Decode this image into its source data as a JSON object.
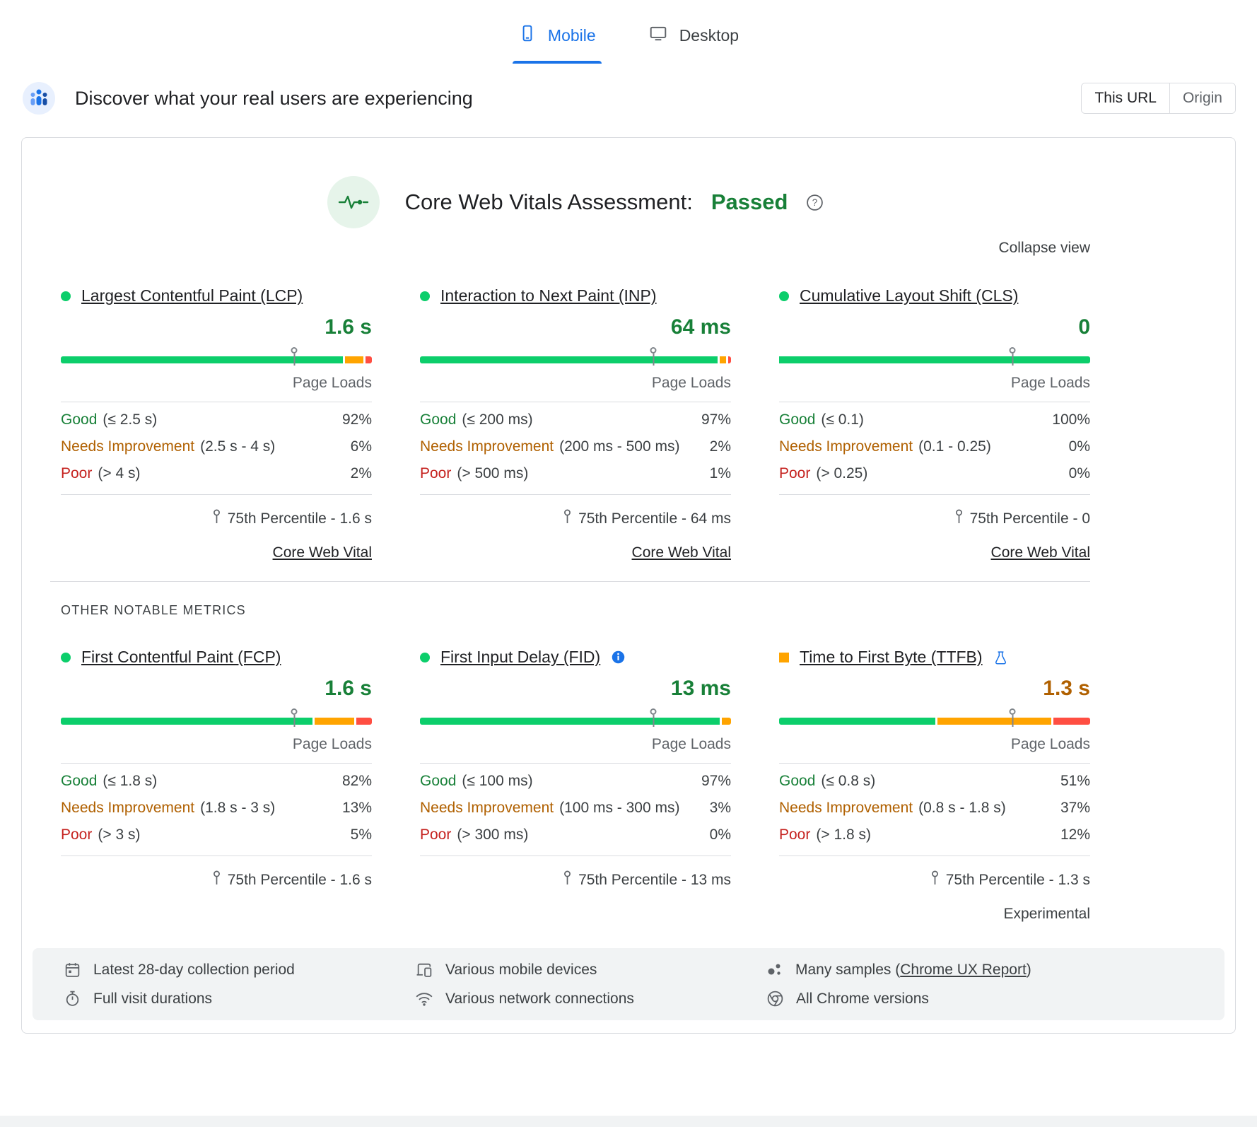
{
  "tabs": {
    "mobile": "Mobile",
    "desktop": "Desktop"
  },
  "header": {
    "title": "Discover what your real users are experiencing",
    "this_url": "This URL",
    "origin": "Origin"
  },
  "assessment": {
    "label": "Core Web Vitals Assessment:",
    "result": "Passed"
  },
  "collapse_view": "Collapse view",
  "section_title": "OTHER NOTABLE METRICS",
  "labels": {
    "page_loads": "Page Loads",
    "core_web_vital": "Core Web Vital",
    "experimental": "Experimental"
  },
  "core_metrics": [
    {
      "name": "Largest Contentful Paint (LCP)",
      "value": "1.6 s",
      "indicator": "green-circle",
      "value_color": "green",
      "distribution": [
        92,
        6,
        2
      ],
      "marker_pct": 75,
      "rows": [
        {
          "label": "Good",
          "range": "(≤ 2.5 s)",
          "pct": "92%"
        },
        {
          "label": "Needs Improvement",
          "range": "(2.5 s - 4 s)",
          "pct": "6%"
        },
        {
          "label": "Poor",
          "range": "(> 4 s)",
          "pct": "2%"
        }
      ],
      "percentile": "75th Percentile - 1.6 s",
      "core_web_vital_link": true,
      "experimental_note": false,
      "badges": []
    },
    {
      "name": "Interaction to Next Paint (INP)",
      "value": "64 ms",
      "indicator": "green-circle",
      "value_color": "green",
      "distribution": [
        97,
        2,
        1
      ],
      "marker_pct": 75,
      "rows": [
        {
          "label": "Good",
          "range": "(≤ 200 ms)",
          "pct": "97%"
        },
        {
          "label": "Needs Improvement",
          "range": "(200 ms - 500 ms)",
          "pct": "2%"
        },
        {
          "label": "Poor",
          "range": "(> 500 ms)",
          "pct": "1%"
        }
      ],
      "percentile": "75th Percentile - 64 ms",
      "core_web_vital_link": true,
      "experimental_note": false,
      "badges": []
    },
    {
      "name": "Cumulative Layout Shift (CLS)",
      "value": "0",
      "indicator": "green-circle",
      "value_color": "green",
      "distribution": [
        100,
        0,
        0
      ],
      "marker_pct": 75,
      "rows": [
        {
          "label": "Good",
          "range": "(≤ 0.1)",
          "pct": "100%"
        },
        {
          "label": "Needs Improvement",
          "range": "(0.1 - 0.25)",
          "pct": "0%"
        },
        {
          "label": "Poor",
          "range": "(> 0.25)",
          "pct": "0%"
        }
      ],
      "percentile": "75th Percentile - 0",
      "core_web_vital_link": true,
      "experimental_note": false,
      "badges": []
    }
  ],
  "other_metrics": [
    {
      "name": "First Contentful Paint (FCP)",
      "value": "1.6 s",
      "indicator": "green-circle",
      "value_color": "green",
      "distribution": [
        82,
        13,
        5
      ],
      "marker_pct": 75,
      "rows": [
        {
          "label": "Good",
          "range": "(≤ 1.8 s)",
          "pct": "82%"
        },
        {
          "label": "Needs Improvement",
          "range": "(1.8 s - 3 s)",
          "pct": "13%"
        },
        {
          "label": "Poor",
          "range": "(> 3 s)",
          "pct": "5%"
        }
      ],
      "percentile": "75th Percentile - 1.6 s",
      "core_web_vital_link": false,
      "experimental_note": false,
      "badges": []
    },
    {
      "name": "First Input Delay (FID)",
      "value": "13 ms",
      "indicator": "green-circle",
      "value_color": "green",
      "distribution": [
        97,
        3,
        0
      ],
      "marker_pct": 75,
      "rows": [
        {
          "label": "Good",
          "range": "(≤ 100 ms)",
          "pct": "97%"
        },
        {
          "label": "Needs Improvement",
          "range": "(100 ms - 300 ms)",
          "pct": "3%"
        },
        {
          "label": "Poor",
          "range": "(> 300 ms)",
          "pct": "0%"
        }
      ],
      "percentile": "75th Percentile - 13 ms",
      "core_web_vital_link": false,
      "experimental_note": false,
      "badges": [
        "info"
      ]
    },
    {
      "name": "Time to First Byte (TTFB)",
      "value": "1.3 s",
      "indicator": "orange-square",
      "value_color": "orange",
      "distribution": [
        51,
        37,
        12
      ],
      "marker_pct": 75,
      "rows": [
        {
          "label": "Good",
          "range": "(≤ 0.8 s)",
          "pct": "51%"
        },
        {
          "label": "Needs Improvement",
          "range": "(0.8 s - 1.8 s)",
          "pct": "37%"
        },
        {
          "label": "Poor",
          "range": "(> 1.8 s)",
          "pct": "12%"
        }
      ],
      "percentile": "75th Percentile - 1.3 s",
      "core_web_vital_link": false,
      "experimental_note": true,
      "badges": [
        "flask"
      ]
    }
  ],
  "footer": {
    "items": [
      {
        "text": "Latest 28-day collection period"
      },
      {
        "text": "Various mobile devices"
      },
      {
        "prefix": "Many samples (",
        "link": "Chrome UX Report",
        "suffix": ")"
      },
      {
        "text": "Full visit durations"
      },
      {
        "text": "Various network connections"
      },
      {
        "text": "All Chrome versions"
      }
    ]
  },
  "colors": {
    "bar_good": "#0cce6b",
    "bar_needs_improvement": "#ffa400",
    "bar_poor": "#ff4e42",
    "text_good": "#188038",
    "text_needs_improvement": "#b06000",
    "text_poor": "#c5221f",
    "accent": "#1a73e8"
  },
  "chart_data": [
    {
      "type": "stacked-bar",
      "metric": "Largest Contentful Paint (LCP)",
      "segments": {
        "good_pct": 92,
        "needs_improvement_pct": 6,
        "poor_pct": 2
      },
      "percentile_75": "1.6 s"
    },
    {
      "type": "stacked-bar",
      "metric": "Interaction to Next Paint (INP)",
      "segments": {
        "good_pct": 97,
        "needs_improvement_pct": 2,
        "poor_pct": 1
      },
      "percentile_75": "64 ms"
    },
    {
      "type": "stacked-bar",
      "metric": "Cumulative Layout Shift (CLS)",
      "segments": {
        "good_pct": 100,
        "needs_improvement_pct": 0,
        "poor_pct": 0
      },
      "percentile_75": "0"
    },
    {
      "type": "stacked-bar",
      "metric": "First Contentful Paint (FCP)",
      "segments": {
        "good_pct": 82,
        "needs_improvement_pct": 13,
        "poor_pct": 5
      },
      "percentile_75": "1.6 s"
    },
    {
      "type": "stacked-bar",
      "metric": "First Input Delay (FID)",
      "segments": {
        "good_pct": 97,
        "needs_improvement_pct": 3,
        "poor_pct": 0
      },
      "percentile_75": "13 ms"
    },
    {
      "type": "stacked-bar",
      "metric": "Time to First Byte (TTFB)",
      "segments": {
        "good_pct": 51,
        "needs_improvement_pct": 37,
        "poor_pct": 12
      },
      "percentile_75": "1.3 s"
    }
  ]
}
